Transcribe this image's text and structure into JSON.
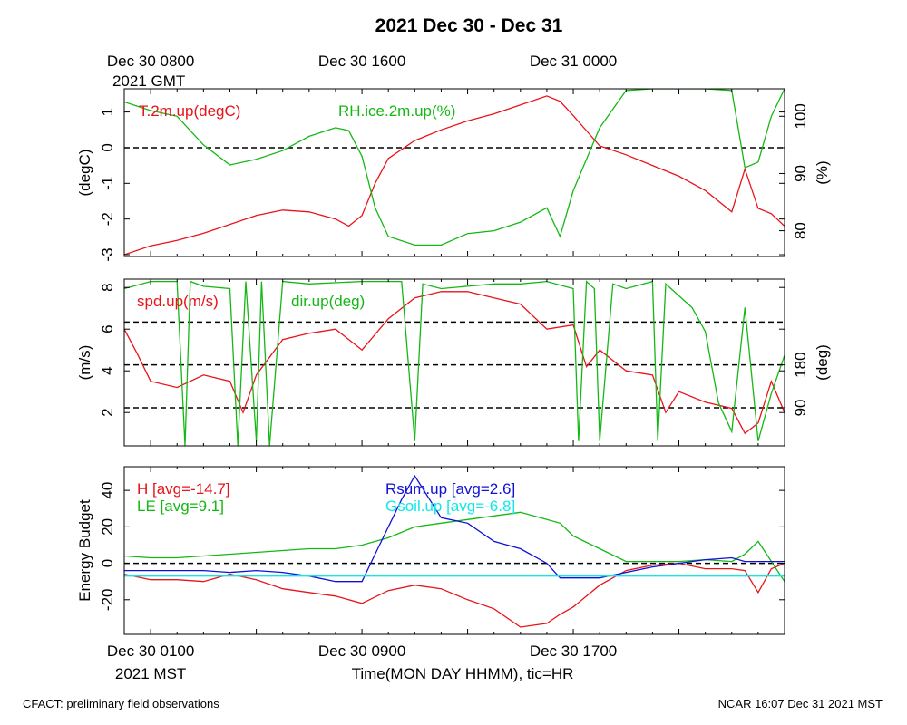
{
  "title": "2021 Dec 30 - Dec 31",
  "footer_left": "CFACT: preliminary field observations",
  "footer_right": "NCAR 16:07 Dec 31 2021 MST",
  "top_time_labels": [
    {
      "line1": "Dec 30 0800",
      "line2": "2021 GMT",
      "hour": 0
    },
    {
      "line1": "Dec 30 1600",
      "line2": "",
      "hour": 8
    },
    {
      "line1": "Dec 31 0000",
      "line2": "",
      "hour": 16
    }
  ],
  "bottom_time_labels": [
    {
      "line1": "Dec 30 0100",
      "line2": "2021 MST",
      "hour": 0
    },
    {
      "line1": "Dec 30 0900",
      "line2": "",
      "hour": 8
    },
    {
      "line1": "Dec 30 1700",
      "line2": "",
      "hour": 16
    }
  ],
  "xlabel": "Time(MON DAY HHMM), tic=HR",
  "colors": {
    "red": "#e8141a",
    "green": "#14b814",
    "blue": "#1010d8",
    "cyan": "#10e8e8"
  },
  "chart_data": [
    {
      "type": "line",
      "panel": "temperature-humidity",
      "xlim": [
        -1,
        24
      ],
      "ylabel": "(degC)",
      "ylim": [
        -3.05,
        1.65
      ],
      "yticks": [
        -3,
        -2,
        -1,
        0,
        1
      ],
      "y2label": "(%)",
      "y2lim": [
        75.5,
        104.8
      ],
      "y2ticks": [
        80,
        90,
        100
      ],
      "ref_lines": [
        0
      ],
      "series": [
        {
          "name": "T.2m.up(degC)",
          "color": "red",
          "axis": "left",
          "x": [
            -1,
            0,
            1,
            2,
            3,
            4,
            5,
            6,
            7,
            7.5,
            8,
            8.5,
            9,
            10,
            11,
            12,
            13,
            14,
            15,
            15.5,
            16,
            17,
            18,
            19,
            20,
            21,
            22,
            22.5,
            23,
            23.5,
            24
          ],
          "y": [
            -3.0,
            -2.75,
            -2.6,
            -2.4,
            -2.15,
            -1.9,
            -1.75,
            -1.8,
            -2.0,
            -2.2,
            -1.9,
            -1.0,
            -0.3,
            0.2,
            0.5,
            0.75,
            0.95,
            1.2,
            1.45,
            1.3,
            0.9,
            0.05,
            -0.2,
            -0.5,
            -0.8,
            -1.2,
            -1.8,
            -0.6,
            -1.7,
            -1.85,
            -2.2
          ]
        },
        {
          "name": "RH.ice.2m.up(%)",
          "color": "green",
          "axis": "right",
          "x": [
            -1,
            0,
            1,
            2,
            3,
            4,
            5,
            6,
            7,
            7.5,
            8,
            8.5,
            9,
            10,
            11,
            12,
            13,
            14,
            15,
            15.5,
            16,
            17,
            18,
            19,
            20,
            21,
            22,
            22.5,
            23,
            23.5,
            24
          ],
          "y": [
            102.5,
            101.0,
            100.0,
            95.0,
            91.5,
            92.5,
            94.0,
            96.5,
            98.0,
            97.5,
            93.0,
            84.0,
            79.0,
            77.5,
            77.5,
            79.5,
            80.0,
            81.5,
            84.0,
            79.0,
            87.0,
            98.0,
            104.5,
            104.8,
            104.8,
            104.8,
            104.5,
            91.0,
            92.0,
            100.0,
            104.8
          ]
        }
      ]
    },
    {
      "type": "line",
      "panel": "wind",
      "xlim": [
        -1,
        24
      ],
      "ylabel": "(m/s)",
      "ylim": [
        0.4,
        8.4
      ],
      "yticks": [
        2,
        4,
        6,
        8
      ],
      "y2label": "(deg)",
      "y2lim": [
        10,
        360
      ],
      "y2ticks": [
        90,
        180
      ],
      "ref_lines_right": [
        90,
        180,
        270
      ],
      "series": [
        {
          "name": "spd.up(m/s)",
          "color": "red",
          "axis": "left",
          "x": [
            -1,
            -0.5,
            0,
            1,
            2,
            3,
            3.5,
            4,
            5,
            6,
            7,
            8,
            9,
            10,
            11,
            12,
            13,
            14,
            15,
            16,
            16.5,
            17,
            18,
            19,
            19.5,
            20,
            21,
            22,
            22.5,
            23,
            23.5,
            24
          ],
          "y": [
            6.0,
            4.8,
            3.5,
            3.2,
            3.8,
            3.5,
            2.0,
            3.8,
            5.5,
            5.8,
            6.0,
            5.0,
            6.5,
            7.5,
            7.8,
            7.8,
            7.5,
            7.2,
            6.0,
            6.2,
            4.2,
            5.0,
            4.0,
            3.8,
            2.0,
            3.0,
            2.5,
            2.2,
            1.0,
            1.5,
            3.5,
            2.0
          ]
        },
        {
          "name": "dir.up(deg)",
          "color": "green",
          "axis": "right",
          "x": [
            -1,
            0,
            1,
            1.3,
            1.5,
            2,
            3,
            3.3,
            3.6,
            4,
            4.2,
            4.5,
            5,
            6,
            8,
            9.5,
            10,
            10.3,
            11,
            12,
            13,
            14,
            15,
            16,
            16.2,
            16.5,
            16.8,
            17,
            17.5,
            18,
            19,
            19.2,
            19.5,
            20,
            20.5,
            21,
            21.5,
            22,
            22.5,
            23,
            23.5,
            24
          ],
          "y": [
            340,
            355,
            355,
            10,
            355,
            345,
            340,
            10,
            355,
            20,
            355,
            10,
            355,
            350,
            355,
            355,
            20,
            350,
            340,
            345,
            350,
            350,
            355,
            340,
            20,
            355,
            340,
            20,
            350,
            340,
            355,
            20,
            350,
            325,
            300,
            250,
            100,
            40,
            300,
            20,
            120,
            200
          ]
        }
      ]
    },
    {
      "type": "line",
      "panel": "energy-budget",
      "xlim": [
        -1,
        24
      ],
      "ylabel": "Energy Budget",
      "ylim": [
        -39,
        53
      ],
      "yticks": [
        -20,
        0,
        20,
        40
      ],
      "ref_lines": [
        0
      ],
      "series": [
        {
          "name": "H [avg=-14.7]",
          "color": "red",
          "x": [
            -1,
            0,
            1,
            2,
            3,
            4,
            5,
            6,
            7,
            8,
            9,
            10,
            11,
            12,
            13,
            14,
            15,
            15.5,
            16,
            17,
            18,
            19,
            20,
            21,
            22,
            22.5,
            23,
            23.5,
            24
          ],
          "y": [
            -6,
            -9,
            -9,
            -10,
            -6,
            -9,
            -14,
            -16,
            -18,
            -22,
            -15,
            -12,
            -14,
            -20,
            -25,
            -35,
            -33,
            -28,
            -24,
            -12,
            -4,
            -1,
            0,
            -3,
            -3,
            -4,
            -16,
            -3,
            0
          ]
        },
        {
          "name": "LE [avg=9.1]",
          "color": "green",
          "x": [
            -1,
            0,
            1,
            2,
            3,
            4,
            5,
            6,
            7,
            8,
            9,
            10,
            11,
            12,
            13,
            14,
            15,
            15.5,
            16,
            17,
            18,
            19,
            20,
            21,
            22,
            22.5,
            23,
            24
          ],
          "y": [
            4,
            3,
            3,
            4,
            5,
            6,
            7,
            8,
            8,
            10,
            14,
            20,
            22,
            24,
            26,
            28,
            24,
            22,
            15,
            8,
            1,
            1,
            1,
            2,
            1,
            5,
            12,
            -10
          ]
        },
        {
          "name": "Rsum.up [avg=2.6]",
          "color": "blue",
          "x": [
            -1,
            0,
            1,
            2,
            3,
            4,
            5,
            6,
            7,
            8,
            8.5,
            9,
            9.5,
            10,
            11,
            12,
            13,
            14,
            15,
            15.5,
            16,
            17,
            18,
            19,
            20,
            21,
            22,
            22.5,
            23,
            24
          ],
          "y": [
            -4,
            -4,
            -4,
            -4,
            -5,
            -4,
            -5,
            -7,
            -10,
            -10,
            5,
            20,
            35,
            48,
            25,
            22,
            12,
            8,
            0,
            -8,
            -8,
            -8,
            -5,
            -2,
            0,
            2,
            3,
            1,
            1,
            1
          ]
        },
        {
          "name": "Gsoil.up [avg=-6.8]",
          "color": "cyan",
          "x": [
            -1,
            24
          ],
          "y": [
            -7,
            -7
          ]
        }
      ]
    }
  ]
}
